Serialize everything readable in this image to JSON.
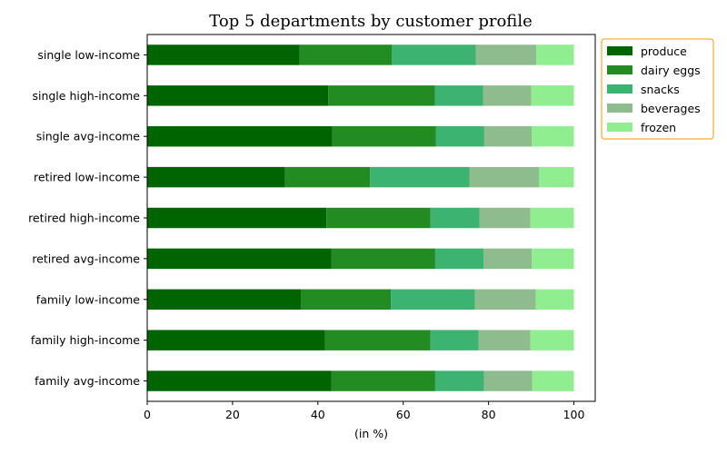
{
  "chart_data": {
    "type": "bar",
    "orientation": "horizontal",
    "stacked": true,
    "title": "Top 5 departments by customer profile",
    "xlabel": "(in %)",
    "ylabel": "",
    "xlim": [
      0,
      105
    ],
    "xticks": [
      "0",
      "20",
      "40",
      "60",
      "80",
      "100"
    ],
    "grid": false,
    "legend_position": "outside-top-right",
    "legend_border_color": "#ff9900",
    "categories": [
      "family avg-income",
      "family high-income",
      "family low-income",
      "retired avg-income",
      "retired high-income",
      "retired low-income",
      "single avg-income",
      "single high-income",
      "single low-income"
    ],
    "series": [
      {
        "name": "produce",
        "color": "#006400",
        "values": [
          43.2,
          41.7,
          36.0,
          43.2,
          42.0,
          32.3,
          43.4,
          42.4,
          35.7
        ]
      },
      {
        "name": "dairy eggs",
        "color": "#228b22",
        "values": [
          24.3,
          24.7,
          21.1,
          24.3,
          24.4,
          19.9,
          24.3,
          25.0,
          21.6
        ]
      },
      {
        "name": "snacks",
        "color": "#3cb371",
        "values": [
          11.4,
          11.3,
          19.7,
          11.3,
          11.5,
          23.3,
          11.3,
          11.3,
          19.7
        ]
      },
      {
        "name": "beverages",
        "color": "#8fbc8f",
        "values": [
          11.3,
          12.1,
          14.3,
          11.3,
          11.9,
          16.3,
          11.1,
          11.3,
          14.2
        ]
      },
      {
        "name": "frozen",
        "color": "#90ee90",
        "values": [
          9.8,
          10.2,
          8.9,
          9.9,
          10.2,
          8.2,
          9.9,
          10.0,
          8.8
        ]
      }
    ]
  }
}
